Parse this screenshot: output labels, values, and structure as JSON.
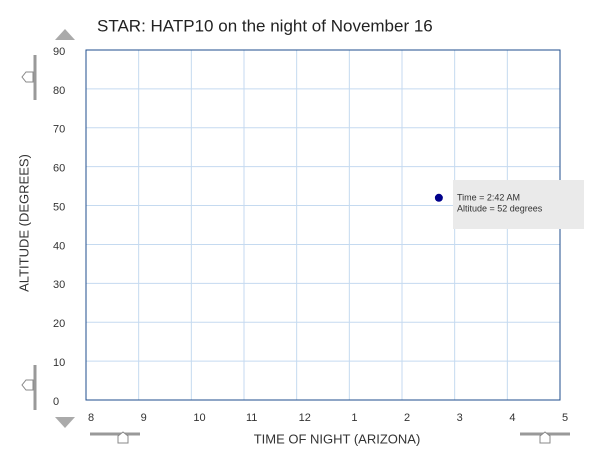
{
  "chart_data": {
    "type": "scatter",
    "title": "STAR: HATP10 on the night of November 16",
    "xlabel": "TIME OF NIGHT (ARIZONA)",
    "ylabel": "ALTITUDE  (DEGREES)",
    "x": [
      26.7
    ],
    "series": [
      {
        "color": "#00008b",
        "values": [
          52
        ]
      }
    ],
    "annotations": [
      "Time = 2:42 AM",
      "Altitude = 52 degrees"
    ],
    "xlim": [
      20,
      29
    ],
    "xticks": [
      {
        "value": 20,
        "label": "8"
      },
      {
        "value": 21,
        "label": "9"
      },
      {
        "value": 22,
        "label": "10"
      },
      {
        "value": 23,
        "label": "11"
      },
      {
        "value": 24,
        "label": "12"
      },
      {
        "value": 25,
        "label": "1"
      },
      {
        "value": 26,
        "label": "2"
      },
      {
        "value": 27,
        "label": "3"
      },
      {
        "value": 28,
        "label": "4"
      },
      {
        "value": 29,
        "label": "5"
      }
    ],
    "ylim": [
      0,
      90
    ],
    "yticks": [
      0,
      10,
      20,
      30,
      40,
      50,
      60,
      70,
      80,
      90
    ],
    "grid": true
  }
}
